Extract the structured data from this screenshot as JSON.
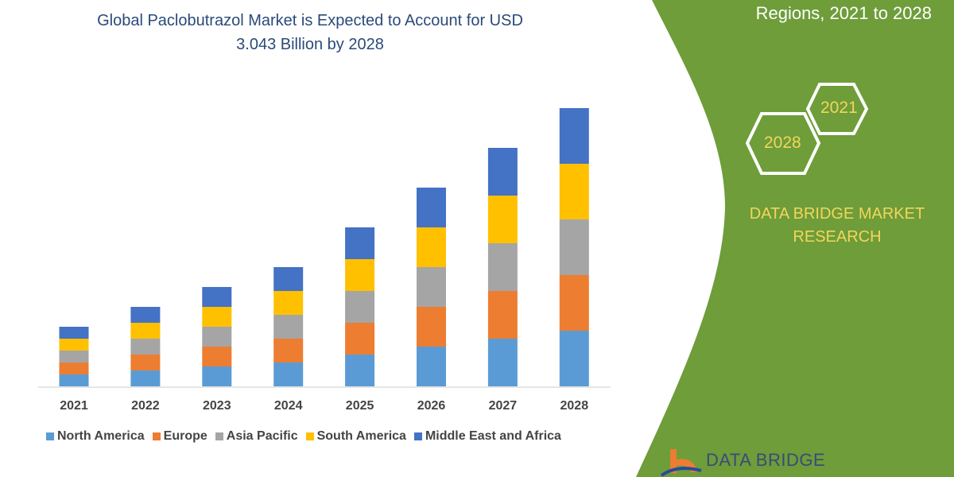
{
  "header": {
    "title_line1": "Global Paclobutrazol Market is Expected to Account for USD",
    "title_line2": "3.043 Billion by 2028",
    "side_title": "Regions, 2021 to 2028"
  },
  "badges": {
    "hex_1": "2021",
    "hex_2": "2028"
  },
  "brand": {
    "line1": "DATA BRIDGE MARKET",
    "line2": "RESEARCH",
    "logo_text": "DATA BRIDGE"
  },
  "colors": {
    "north_america": "#5b9bd5",
    "europe": "#ed7d31",
    "asia_pacific": "#a5a5a5",
    "south_america": "#ffc000",
    "mea": "#4472c4",
    "panel": "#6e9d3a",
    "accent_text": "#f2d65a"
  },
  "chart_data": {
    "type": "bar",
    "stacked": true,
    "title": "Global Paclobutrazol Market is Expected to Account for USD 3.043 Billion by 2028",
    "categories": [
      "2021",
      "2022",
      "2023",
      "2024",
      "2025",
      "2026",
      "2027",
      "2028"
    ],
    "y_axis_shown": false,
    "grid": false,
    "legend_position": "bottom",
    "series": [
      {
        "name": "North America",
        "color": "#5b9bd5",
        "values": [
          15,
          20,
          25,
          30,
          40,
          50,
          60,
          70
        ]
      },
      {
        "name": "Europe",
        "color": "#ed7d31",
        "values": [
          15,
          20,
          25,
          30,
          40,
          50,
          60,
          70
        ]
      },
      {
        "name": "Asia Pacific",
        "color": "#a5a5a5",
        "values": [
          15,
          20,
          25,
          30,
          40,
          50,
          60,
          70
        ]
      },
      {
        "name": "South America",
        "color": "#ffc000",
        "values": [
          15,
          20,
          25,
          30,
          40,
          50,
          60,
          70
        ]
      },
      {
        "name": "Middle East and Africa",
        "color": "#4472c4",
        "values": [
          15,
          20,
          25,
          30,
          40,
          50,
          60,
          70
        ]
      }
    ]
  }
}
